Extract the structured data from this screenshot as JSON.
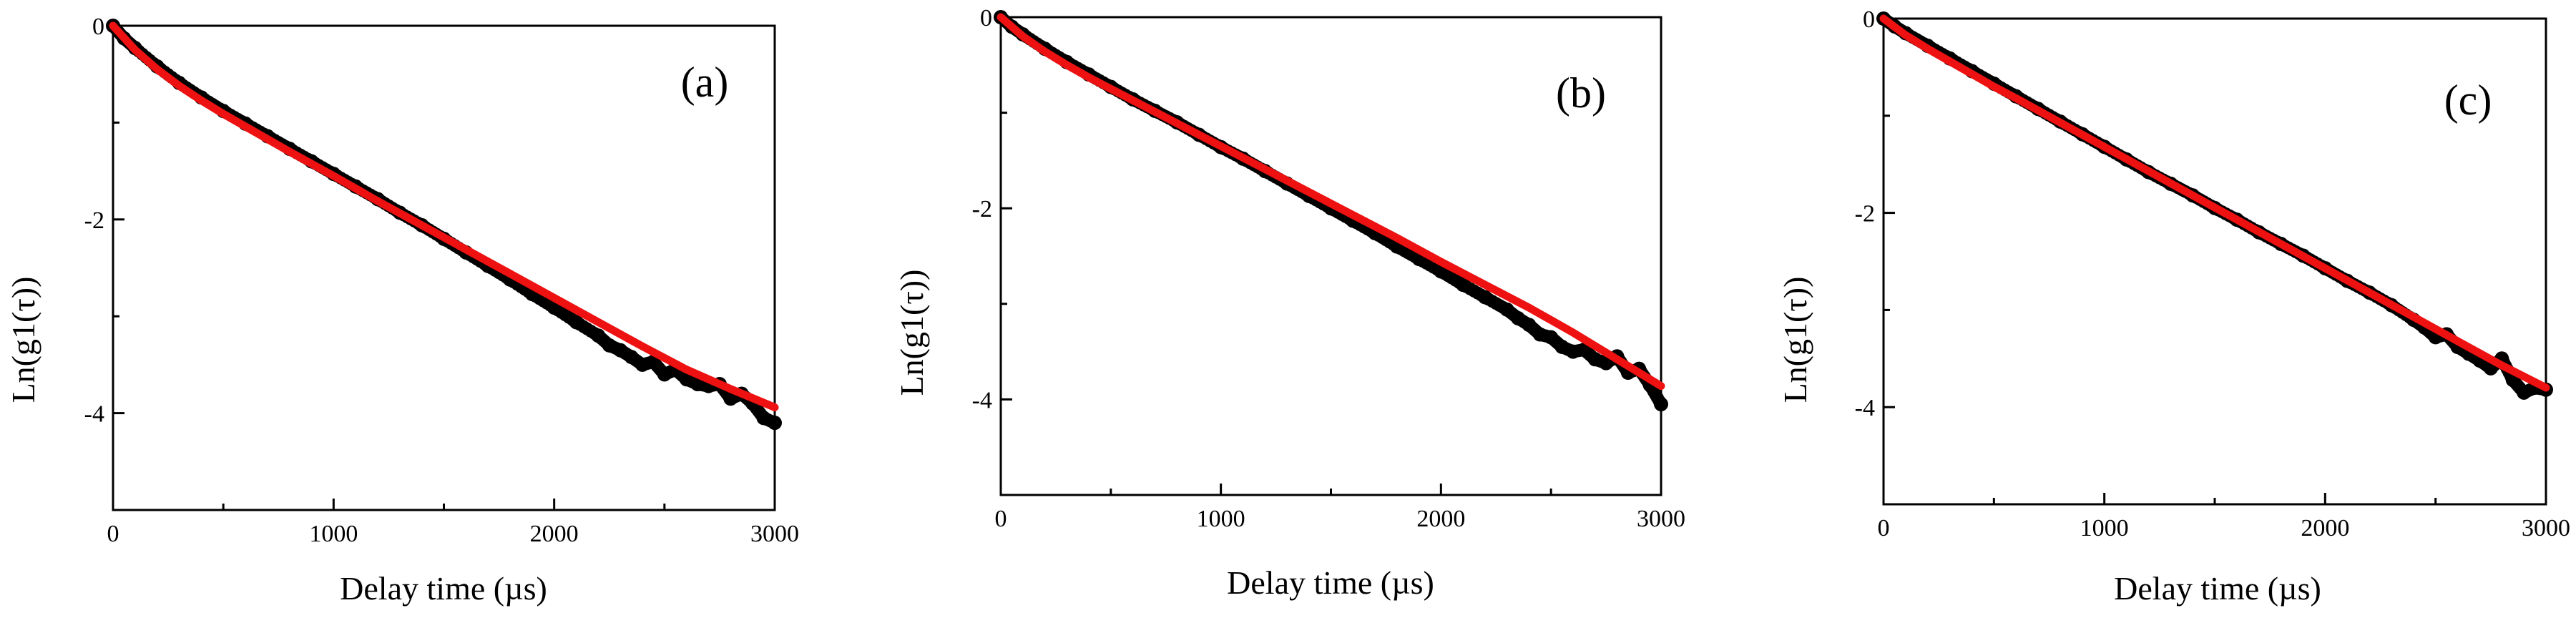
{
  "chart_data": [
    {
      "type": "scatter",
      "panel_label": "(a)",
      "xlabel": "Delay time (µs)",
      "ylabel": "Ln(g1(τ))",
      "xlim": [
        0,
        3000
      ],
      "ylim": [
        -5,
        0
      ],
      "xticks": [
        0,
        1000,
        2000,
        3000
      ],
      "yticks": [
        0,
        -2,
        -4
      ],
      "series": [
        {
          "kind": "points",
          "color": "#000000",
          "x": [
            0,
            50,
            100,
            200,
            300,
            400,
            500,
            600,
            700,
            800,
            900,
            1000,
            1100,
            1200,
            1300,
            1400,
            1500,
            1600,
            1700,
            1800,
            1900,
            2000,
            2100,
            2200,
            2250,
            2300,
            2350,
            2400,
            2450,
            2500,
            2550,
            2600,
            2650,
            2700,
            2750,
            2800,
            2850,
            2900,
            2950,
            3000
          ],
          "y": [
            0,
            -0.13,
            -0.23,
            -0.42,
            -0.59,
            -0.74,
            -0.88,
            -1.01,
            -1.14,
            -1.27,
            -1.4,
            -1.53,
            -1.66,
            -1.79,
            -1.93,
            -2.06,
            -2.2,
            -2.34,
            -2.48,
            -2.62,
            -2.77,
            -2.91,
            -3.06,
            -3.2,
            -3.3,
            -3.35,
            -3.42,
            -3.5,
            -3.47,
            -3.6,
            -3.55,
            -3.65,
            -3.7,
            -3.72,
            -3.7,
            -3.85,
            -3.8,
            -3.9,
            -4.05,
            -4.1
          ]
        },
        {
          "kind": "fit",
          "color": "#ee1111",
          "x": [
            0,
            100,
            200,
            300,
            400,
            500,
            600,
            800,
            1000,
            1200,
            1400,
            1600,
            1800,
            2000,
            2200,
            2400,
            2600,
            2800,
            3000
          ],
          "y": [
            0,
            -0.25,
            -0.45,
            -0.62,
            -0.77,
            -0.91,
            -1.04,
            -1.3,
            -1.55,
            -1.81,
            -2.06,
            -2.31,
            -2.56,
            -2.81,
            -3.06,
            -3.31,
            -3.55,
            -3.75,
            -3.94
          ]
        }
      ]
    },
    {
      "type": "scatter",
      "panel_label": "(b)",
      "xlabel": "Delay time (µs)",
      "ylabel": "Ln(g1(τ))",
      "xlim": [
        0,
        3000
      ],
      "ylim": [
        -5,
        0
      ],
      "xticks": [
        0,
        1000,
        2000,
        3000
      ],
      "yticks": [
        0,
        -2,
        -4
      ],
      "series": [
        {
          "kind": "points",
          "color": "#000000",
          "x": [
            0,
            50,
            100,
            200,
            300,
            400,
            500,
            600,
            700,
            800,
            900,
            1000,
            1100,
            1200,
            1300,
            1400,
            1500,
            1600,
            1700,
            1800,
            1900,
            2000,
            2100,
            2200,
            2300,
            2350,
            2400,
            2450,
            2500,
            2550,
            2600,
            2650,
            2700,
            2750,
            2800,
            2850,
            2900,
            2950,
            3000
          ],
          "y": [
            0,
            -0.1,
            -0.18,
            -0.33,
            -0.47,
            -0.6,
            -0.73,
            -0.86,
            -0.98,
            -1.1,
            -1.23,
            -1.36,
            -1.48,
            -1.61,
            -1.74,
            -1.87,
            -2.0,
            -2.13,
            -2.26,
            -2.4,
            -2.53,
            -2.66,
            -2.8,
            -2.93,
            -3.06,
            -3.15,
            -3.22,
            -3.32,
            -3.35,
            -3.45,
            -3.5,
            -3.48,
            -3.58,
            -3.62,
            -3.55,
            -3.72,
            -3.68,
            -3.85,
            -4.05
          ]
        },
        {
          "kind": "fit",
          "color": "#ee1111",
          "x": [
            0,
            100,
            200,
            300,
            400,
            500,
            600,
            800,
            1000,
            1200,
            1400,
            1600,
            1800,
            2000,
            2200,
            2400,
            2600,
            2800,
            3000
          ],
          "y": [
            0,
            -0.2,
            -0.36,
            -0.5,
            -0.63,
            -0.75,
            -0.87,
            -1.11,
            -1.35,
            -1.59,
            -1.83,
            -2.07,
            -2.31,
            -2.56,
            -2.8,
            -3.04,
            -3.3,
            -3.58,
            -3.86
          ]
        }
      ]
    },
    {
      "type": "scatter",
      "panel_label": "(c)",
      "xlabel": "Delay time (µs)",
      "ylabel": "Ln(g1(τ))",
      "xlim": [
        0,
        3000
      ],
      "ylim": [
        -5,
        0
      ],
      "xticks": [
        0,
        1000,
        2000,
        3000
      ],
      "yticks": [
        0,
        -2,
        -4
      ],
      "series": [
        {
          "kind": "points",
          "color": "#000000",
          "x": [
            0,
            50,
            100,
            200,
            300,
            400,
            500,
            600,
            700,
            800,
            900,
            1000,
            1100,
            1200,
            1300,
            1400,
            1500,
            1600,
            1700,
            1800,
            1900,
            2000,
            2100,
            2200,
            2300,
            2400,
            2450,
            2500,
            2550,
            2600,
            2650,
            2700,
            2750,
            2800,
            2850,
            2900,
            2950,
            3000
          ],
          "y": [
            0,
            -0.08,
            -0.15,
            -0.28,
            -0.41,
            -0.54,
            -0.67,
            -0.8,
            -0.93,
            -1.06,
            -1.19,
            -1.32,
            -1.45,
            -1.58,
            -1.7,
            -1.82,
            -1.95,
            -2.07,
            -2.2,
            -2.32,
            -2.44,
            -2.57,
            -2.7,
            -2.82,
            -2.95,
            -3.1,
            -3.18,
            -3.28,
            -3.25,
            -3.38,
            -3.45,
            -3.52,
            -3.6,
            -3.5,
            -3.72,
            -3.85,
            -3.8,
            -3.82
          ]
        },
        {
          "kind": "fit",
          "color": "#ee1111",
          "x": [
            0,
            100,
            200,
            300,
            400,
            500,
            600,
            800,
            1000,
            1200,
            1400,
            1600,
            1800,
            2000,
            2200,
            2400,
            2600,
            2800,
            3000
          ],
          "y": [
            0,
            -0.17,
            -0.31,
            -0.44,
            -0.57,
            -0.7,
            -0.82,
            -1.07,
            -1.32,
            -1.57,
            -1.82,
            -2.07,
            -2.32,
            -2.57,
            -2.82,
            -3.07,
            -3.32,
            -3.57,
            -3.8
          ]
        }
      ]
    }
  ]
}
